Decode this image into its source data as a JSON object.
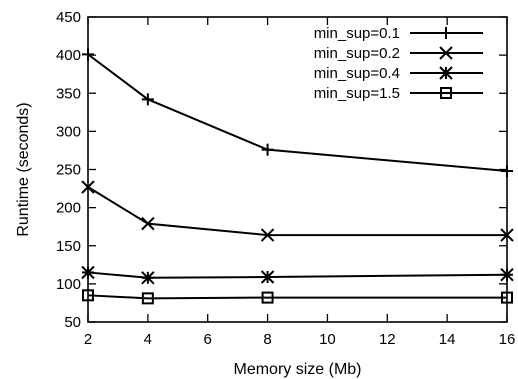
{
  "chart_data": {
    "type": "line",
    "title": "",
    "xlabel": "Memory size (Mb)",
    "ylabel": "Runtime (seconds)",
    "xlim": [
      2,
      16
    ],
    "ylim": [
      50,
      450
    ],
    "x_ticks": [
      2,
      4,
      6,
      8,
      10,
      12,
      14,
      16
    ],
    "y_ticks": [
      50,
      100,
      150,
      200,
      250,
      300,
      350,
      400,
      450
    ],
    "grid": false,
    "legend_position": "top-right",
    "x": [
      2,
      4,
      8,
      16
    ],
    "series": [
      {
        "name": "min_sup=0.1",
        "marker": "plus",
        "values": [
          401,
          342,
          276,
          248
        ]
      },
      {
        "name": "min_sup=0.2",
        "marker": "cross",
        "values": [
          227,
          179,
          164,
          164
        ]
      },
      {
        "name": "min_sup=0.4",
        "marker": "star",
        "values": [
          115,
          108,
          109,
          112
        ]
      },
      {
        "name": "min_sup=1.5",
        "marker": "square",
        "values": [
          85,
          81,
          82,
          82
        ]
      }
    ]
  }
}
